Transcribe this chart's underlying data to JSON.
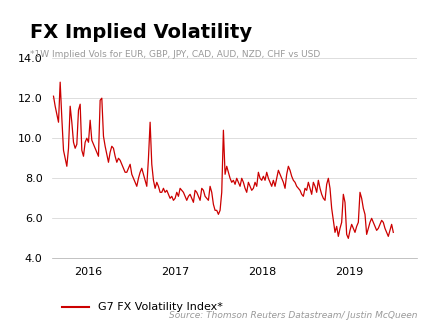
{
  "title": "FX Implied Volatility",
  "subtitle": "*1W Implied Vols for EUR, GBP, JPY, CAD, AUD, NZD, CHF vs USD",
  "source": "Source: Thomson Reuters Datastream/ Justin McQueen",
  "legend_label": "G7 FX Volatility Index*",
  "line_color": "#cc0000",
  "background_color": "#ffffff",
  "grid_color": "#d0d0d0",
  "ylim": [
    4.0,
    14.0
  ],
  "yticks": [
    4.0,
    6.0,
    8.0,
    10.0,
    12.0,
    14.0
  ],
  "xlim_end": "2019-10-15",
  "xtick_years": [
    "2016",
    "2017",
    "2018",
    "2019"
  ],
  "title_fontsize": 14,
  "subtitle_fontsize": 6.5,
  "source_fontsize": 6.5,
  "axis_fontsize": 8,
  "legend_fontsize": 8,
  "weekly_values": [
    12.1,
    11.6,
    11.2,
    10.8,
    12.8,
    11.0,
    9.4,
    9.0,
    8.6,
    9.5,
    11.6,
    10.8,
    9.8,
    9.5,
    9.7,
    11.4,
    11.7,
    9.4,
    9.1,
    9.8,
    10.0,
    9.8,
    10.9,
    9.9,
    9.7,
    9.5,
    9.3,
    9.1,
    11.9,
    12.0,
    10.1,
    9.6,
    9.2,
    8.8,
    9.3,
    9.6,
    9.5,
    9.1,
    8.8,
    9.0,
    8.9,
    8.7,
    8.5,
    8.3,
    8.3,
    8.5,
    8.7,
    8.2,
    8.0,
    7.8,
    7.6,
    8.0,
    8.3,
    8.5,
    8.2,
    7.9,
    7.6,
    9.0,
    10.8,
    8.7,
    7.9,
    7.5,
    7.8,
    7.6,
    7.3,
    7.3,
    7.5,
    7.3,
    7.4,
    7.2,
    7.0,
    7.1,
    6.9,
    7.0,
    7.3,
    7.1,
    7.5,
    7.4,
    7.3,
    7.1,
    6.9,
    7.1,
    7.2,
    7.0,
    6.8,
    7.4,
    7.3,
    7.1,
    6.9,
    7.5,
    7.4,
    7.1,
    7.0,
    6.9,
    7.6,
    7.3,
    6.7,
    6.4,
    6.4,
    6.2,
    6.4,
    7.3,
    10.4,
    8.2,
    8.6,
    8.3,
    8.0,
    7.8,
    7.9,
    7.7,
    8.0,
    7.8,
    7.6,
    8.0,
    7.8,
    7.5,
    7.3,
    7.8,
    7.6,
    7.4,
    7.5,
    7.8,
    7.6,
    8.3,
    8.0,
    7.9,
    8.1,
    7.9,
    8.3,
    8.0,
    7.8,
    7.6,
    7.9,
    7.6,
    8.0,
    8.4,
    8.2,
    8.0,
    7.8,
    7.5,
    8.2,
    8.6,
    8.4,
    8.1,
    7.9,
    7.8,
    7.6,
    7.5,
    7.4,
    7.2,
    7.1,
    7.5,
    7.4,
    7.8,
    7.5,
    7.2,
    7.8,
    7.6,
    7.3,
    7.9,
    7.5,
    7.2,
    7.0,
    6.9,
    7.7,
    8.0,
    7.5,
    6.5,
    5.9,
    5.3,
    5.6,
    5.1,
    5.5,
    5.8,
    7.2,
    6.8,
    5.2,
    5.0,
    5.4,
    5.7,
    5.5,
    5.3,
    5.6,
    5.8,
    7.3,
    7.0,
    6.5,
    6.2,
    5.2,
    5.5,
    5.8,
    6.0,
    5.8,
    5.6,
    5.4,
    5.5,
    5.7,
    5.9,
    5.8,
    5.5,
    5.3,
    5.1,
    5.4,
    5.7,
    5.3
  ]
}
